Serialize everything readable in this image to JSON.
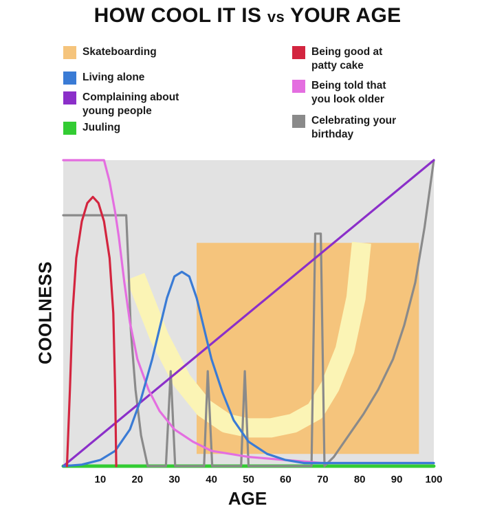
{
  "chart_data": {
    "type": "line",
    "title_main": "HOW COOL IT IS",
    "title_vs": "vs",
    "title_end": "YOUR AGE",
    "xlabel": "AGE",
    "ylabel": "COOLNESS",
    "xlim": [
      0,
      100
    ],
    "ylim": [
      0,
      100
    ],
    "x_ticks": [
      "10",
      "20",
      "30",
      "40",
      "50",
      "60",
      "70",
      "80",
      "90",
      "100"
    ],
    "grid": false,
    "legend_position": "top",
    "series": [
      {
        "name": "Skateboarding",
        "color": "#f5c47c",
        "points": [
          [
            4,
            73
          ],
          [
            36,
            73
          ],
          [
            36,
            4
          ],
          [
            96,
            4
          ],
          [
            96,
            73
          ],
          [
            4,
            73
          ]
        ]
      },
      {
        "name": "Living alone",
        "color": "#3a7bd5",
        "points": [
          [
            0,
            0
          ],
          [
            5,
            0.5
          ],
          [
            10,
            2
          ],
          [
            14,
            5
          ],
          [
            18,
            12
          ],
          [
            21,
            22
          ],
          [
            24,
            35
          ],
          [
            26,
            45
          ],
          [
            28,
            55
          ],
          [
            30,
            62
          ],
          [
            32,
            63.5
          ],
          [
            34,
            62
          ],
          [
            36,
            55
          ],
          [
            38,
            45
          ],
          [
            40,
            35
          ],
          [
            43,
            24
          ],
          [
            46,
            15
          ],
          [
            50,
            8
          ],
          [
            55,
            4
          ],
          [
            60,
            2
          ],
          [
            65,
            1
          ],
          [
            70,
            1
          ],
          [
            100,
            1
          ]
        ]
      },
      {
        "name": "Complaining about young people",
        "color": "#8b2fc9",
        "points": [
          [
            0,
            0
          ],
          [
            100,
            100
          ]
        ]
      },
      {
        "name": "Juuling",
        "color": "#33cc33",
        "points": [
          [
            0,
            0
          ],
          [
            100,
            0
          ]
        ]
      },
      {
        "name": "Being good at patty cake",
        "color": "#d3253f",
        "points": [
          [
            1,
            0
          ],
          [
            1.8,
            25
          ],
          [
            2.5,
            50
          ],
          [
            3.5,
            68
          ],
          [
            5,
            80
          ],
          [
            6.5,
            86
          ],
          [
            8,
            88
          ],
          [
            9.5,
            86
          ],
          [
            11,
            80
          ],
          [
            12.5,
            68
          ],
          [
            13.5,
            50
          ],
          [
            14,
            25
          ],
          [
            14.3,
            0
          ]
        ]
      },
      {
        "name": "Being told that you look older",
        "color": "#e46ee0",
        "points": [
          [
            0,
            100
          ],
          [
            11,
            100
          ],
          [
            12.5,
            93
          ],
          [
            14,
            83
          ],
          [
            15,
            75
          ],
          [
            16.5,
            60
          ],
          [
            18,
            47
          ],
          [
            20,
            35
          ],
          [
            23,
            25
          ],
          [
            26,
            18
          ],
          [
            30,
            12
          ],
          [
            35,
            8
          ],
          [
            40,
            5
          ],
          [
            50,
            3
          ],
          [
            60,
            2
          ],
          [
            70,
            1
          ],
          [
            80,
            1
          ],
          [
            100,
            1
          ]
        ]
      },
      {
        "name": "Celebrating your birthday",
        "color": "#8a8a8a",
        "points": [
          [
            0,
            82
          ],
          [
            17,
            82
          ],
          [
            17.6,
            65
          ],
          [
            18.2,
            45
          ],
          [
            19.5,
            25
          ],
          [
            21,
            10
          ],
          [
            22.8,
            0
          ],
          [
            27.7,
            0
          ],
          [
            29,
            31
          ],
          [
            30.2,
            0
          ],
          [
            38,
            0
          ],
          [
            39,
            31
          ],
          [
            40.2,
            0
          ],
          [
            48,
            0
          ],
          [
            49,
            31
          ],
          [
            50,
            0
          ],
          [
            67,
            0
          ],
          [
            68,
            76
          ],
          [
            69.5,
            76
          ],
          [
            70.5,
            0
          ],
          [
            73,
            3
          ],
          [
            77,
            10
          ],
          [
            81,
            17
          ],
          [
            85,
            25
          ],
          [
            89,
            35
          ],
          [
            92,
            46
          ],
          [
            95,
            60
          ],
          [
            97.5,
            78
          ],
          [
            100,
            100
          ]
        ]
      }
    ]
  }
}
